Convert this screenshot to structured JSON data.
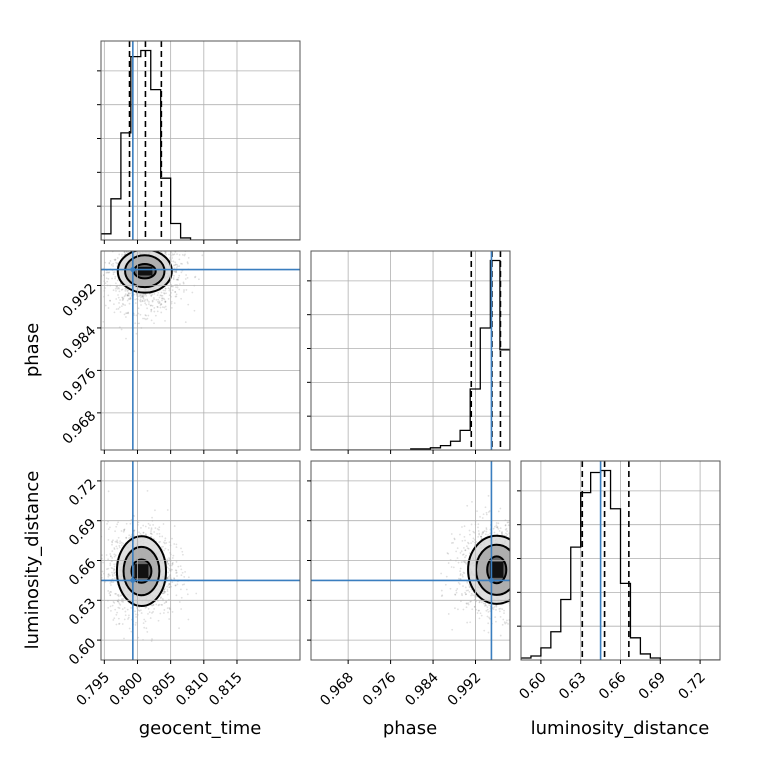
{
  "chart_data": {
    "type": "corner",
    "parameters": [
      "geocent_time",
      "phase",
      "luminosity_distance"
    ],
    "colors": {
      "truth": "#3a7ebf",
      "hist": "#000000",
      "grid": "#b0b0b0"
    },
    "truths": {
      "geocent_time": 0.7993,
      "phase": 0.995,
      "luminosity_distance": 0.645
    },
    "ranges": {
      "geocent_time": [
        0.7945,
        0.8245
      ],
      "phase": [
        0.961,
        0.9985
      ],
      "luminosity_distance": [
        0.585,
        0.735
      ]
    },
    "ticks": {
      "geocent_time": [
        {
          "v": 0.795,
          "label": "0.795"
        },
        {
          "v": 0.8,
          "label": "0.800"
        },
        {
          "v": 0.805,
          "label": "0.805"
        },
        {
          "v": 0.81,
          "label": "0.810"
        },
        {
          "v": 0.815,
          "label": "0.815"
        }
      ],
      "phase": [
        {
          "v": 0.968,
          "label": "0.968"
        },
        {
          "v": 0.976,
          "label": "0.976"
        },
        {
          "v": 0.984,
          "label": "0.984"
        },
        {
          "v": 0.992,
          "label": "0.992"
        }
      ],
      "luminosity_distance": [
        {
          "v": 0.6,
          "label": "0.60"
        },
        {
          "v": 0.63,
          "label": "0.63"
        },
        {
          "v": 0.66,
          "label": "0.66"
        },
        {
          "v": 0.69,
          "label": "0.69"
        },
        {
          "v": 0.72,
          "label": "0.72"
        }
      ]
    },
    "histograms": {
      "geocent_time": {
        "edges": [
          0.7945,
          0.796,
          0.7975,
          0.799,
          0.8005,
          0.802,
          0.8035,
          0.805,
          0.8065,
          0.808,
          0.8095,
          0.811,
          0.8125,
          0.814,
          0.8155,
          0.817,
          0.8185,
          0.82,
          0.8215,
          0.823,
          0.8245
        ],
        "counts": [
          3,
          20,
          52,
          89,
          92,
          73,
          30,
          8,
          1,
          0,
          0,
          0,
          0,
          0,
          0,
          0,
          0,
          0,
          0,
          0
        ],
        "quantiles": [
          0.7988,
          0.8012,
          0.8036
        ]
      },
      "phase": {
        "edges": [
          0.961,
          0.9629,
          0.9648,
          0.9666,
          0.9685,
          0.9704,
          0.9723,
          0.9741,
          0.976,
          0.9779,
          0.9798,
          0.9816,
          0.9835,
          0.9854,
          0.9873,
          0.9891,
          0.991,
          0.9929,
          0.9948,
          0.9966,
          0.9985
        ],
        "counts": [
          0,
          0,
          0,
          0,
          0,
          0,
          0,
          0,
          0,
          0,
          0.5,
          0.5,
          1,
          2,
          4,
          9,
          28,
          56,
          87,
          46
        ],
        "quantiles": [
          0.9912,
          0.9951,
          0.9967
        ]
      },
      "luminosity_distance": {
        "edges": [
          0.585,
          0.5925,
          0.6,
          0.6075,
          0.615,
          0.6225,
          0.63,
          0.6375,
          0.645,
          0.6525,
          0.66,
          0.6675,
          0.675,
          0.6825,
          0.69,
          0.6975,
          0.705,
          0.7125,
          0.72,
          0.7275,
          0.735
        ],
        "counts": [
          1,
          2,
          6,
          14,
          30,
          56,
          83,
          93,
          94,
          75,
          38,
          11,
          3,
          1,
          0,
          0,
          0,
          0,
          0,
          0
        ],
        "quantiles": [
          0.6312,
          0.648,
          0.6663
        ]
      }
    },
    "density_2d": [
      {
        "x": "geocent_time",
        "y": "phase",
        "center": [
          0.8011,
          0.9947
        ],
        "spread": [
          0.0022,
          0.003
        ],
        "levels": [
          {
            "sx": 0.75,
            "sy": 0.45
          },
          {
            "sx": 1.35,
            "sy": 1.0
          },
          {
            "sx": 1.85,
            "sy": 1.35
          }
        ]
      },
      {
        "x": "geocent_time",
        "y": "luminosity_distance",
        "center": [
          0.8006,
          0.652
        ],
        "spread": [
          0.002,
          0.0135
        ],
        "levels": [
          {
            "sx": 0.75,
            "sy": 0.65
          },
          {
            "sx": 1.35,
            "sy": 1.35
          },
          {
            "sx": 1.85,
            "sy": 1.95
          }
        ]
      },
      {
        "x": "phase",
        "y": "luminosity_distance",
        "center": [
          0.996,
          0.653
        ],
        "spread": [
          0.003,
          0.0135
        ],
        "levels": [
          {
            "sx": 0.6,
            "sy": 0.75
          },
          {
            "sx": 1.3,
            "sy": 1.4
          },
          {
            "sx": 1.8,
            "sy": 1.9
          }
        ]
      }
    ]
  }
}
